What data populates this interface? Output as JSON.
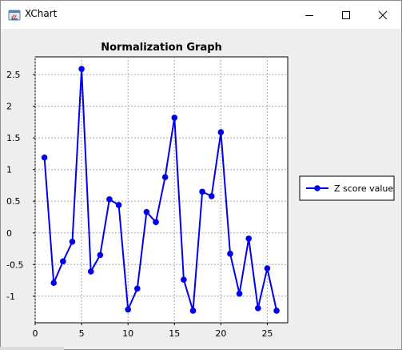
{
  "window": {
    "title": "XChart",
    "app_icon": "java-icon",
    "buttons": {
      "minimize": "minimize-icon",
      "maximize": "maximize-icon",
      "close": "close-icon"
    }
  },
  "chart_data": {
    "type": "line",
    "title": "Normalization Graph",
    "xlabel": "",
    "ylabel": "",
    "xlim": [
      0,
      27.2
    ],
    "ylim": [
      -1.42,
      2.78
    ],
    "xticks": [
      0,
      5,
      10,
      15,
      20,
      25
    ],
    "yticks": [
      2.5,
      2,
      1.5,
      1,
      0.5,
      0,
      -0.5,
      -1
    ],
    "grid": true,
    "legend_position": "right",
    "series": [
      {
        "name": "Z score value",
        "color": "#0000ee",
        "marker": "circle",
        "x": [
          1,
          2,
          3,
          4,
          5,
          6,
          7,
          8,
          9,
          10,
          11,
          12,
          13,
          14,
          15,
          16,
          17,
          18,
          19,
          20,
          21,
          22,
          23,
          24,
          25,
          26
        ],
        "y": [
          1.19,
          -0.79,
          -0.45,
          -0.14,
          2.59,
          -0.61,
          -0.35,
          0.53,
          0.44,
          -1.21,
          -0.88,
          0.33,
          0.17,
          0.88,
          1.82,
          -0.74,
          -1.23,
          0.65,
          0.58,
          1.59,
          -0.33,
          -0.96,
          -0.09,
          -1.19,
          -0.56,
          -1.23
        ]
      }
    ]
  }
}
